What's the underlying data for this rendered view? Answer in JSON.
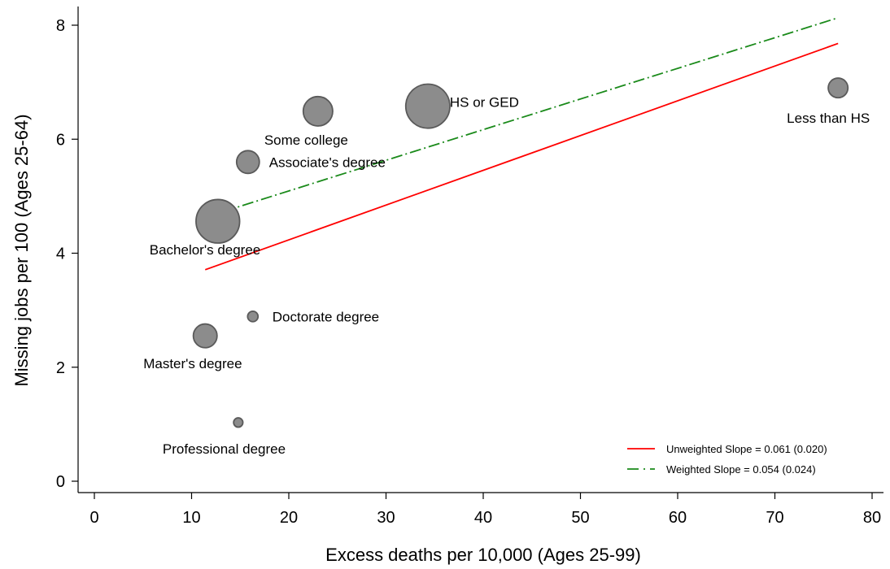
{
  "chart_data": {
    "type": "scatter",
    "title": "",
    "xlabel": "Excess deaths per 10,000 (Ages 25-99)",
    "ylabel": "Missing jobs per 100 (Ages 25-64)",
    "xlim": [
      0,
      80
    ],
    "ylim": [
      0,
      8
    ],
    "xticks": [
      0,
      10,
      20,
      30,
      40,
      50,
      60,
      70,
      80
    ],
    "yticks": [
      0,
      2,
      4,
      6,
      8
    ],
    "grid": false,
    "legend_position": "bottom-right",
    "marker_color": "#8c8c8c",
    "points": [
      {
        "label": "Less than HS",
        "x": 76.5,
        "y": 6.9,
        "weight": 0.9
      },
      {
        "label": "HS or GED",
        "x": 34.3,
        "y": 6.58,
        "weight": 4.5
      },
      {
        "label": "Some college",
        "x": 23.0,
        "y": 6.49,
        "weight": 2.0
      },
      {
        "label": "Associate's degree",
        "x": 15.8,
        "y": 5.6,
        "weight": 1.2
      },
      {
        "label": "Bachelor's degree",
        "x": 12.7,
        "y": 4.56,
        "weight": 4.4
      },
      {
        "label": "Doctorate degree",
        "x": 16.3,
        "y": 2.89,
        "weight": 0.25
      },
      {
        "label": "Master's degree",
        "x": 11.4,
        "y": 2.55,
        "weight": 1.3
      },
      {
        "label": "Professional degree",
        "x": 14.8,
        "y": 1.03,
        "weight": 0.2
      }
    ],
    "series": [
      {
        "name": "Unweighted Slope = 0.061 (0.020)",
        "color": "#ff0000",
        "dash": "solid",
        "x": [
          11.4,
          76.5
        ],
        "y": [
          3.71,
          7.68
        ]
      },
      {
        "name": "Weighted Slope = 0.054 (0.024)",
        "color": "#1a8a1a",
        "dash": "dash-dot",
        "x": [
          11.4,
          76.5
        ],
        "y": [
          4.63,
          8.13
        ]
      }
    ]
  }
}
